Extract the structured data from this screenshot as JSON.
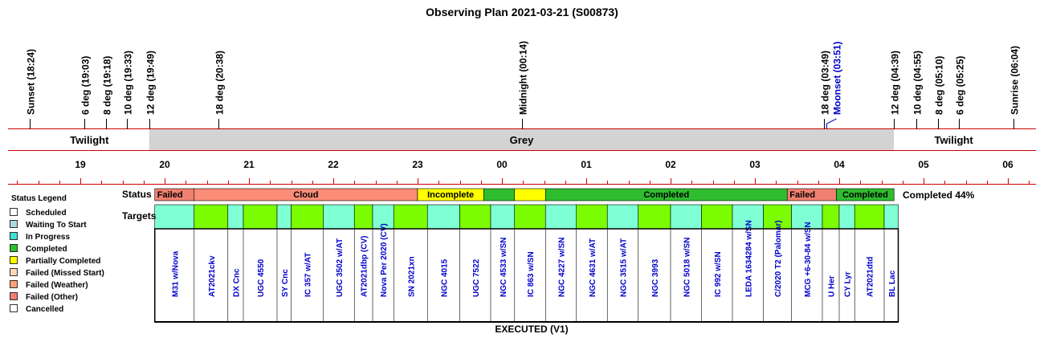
{
  "title": "Observing Plan 2021-03-21 (S00873)",
  "events": [
    {
      "label": "Sunset (18:24)",
      "time": "18:24"
    },
    {
      "label": "6 deg (19:03)",
      "time": "19:03"
    },
    {
      "label": "8 deg (19:18)",
      "time": "19:18"
    },
    {
      "label": "10 deg (19:33)",
      "time": "19:33"
    },
    {
      "label": "12 deg (19:49)",
      "time": "19:49"
    },
    {
      "label": "18 deg (20:38)",
      "time": "20:38"
    },
    {
      "label": "Midnight (00:14)",
      "time": "00:14"
    },
    {
      "label": "18 deg (03:49)",
      "time": "03:49"
    },
    {
      "label": "12 deg (04:39)",
      "time": "04:39"
    },
    {
      "label": "10 deg (04:55)",
      "time": "04:55"
    },
    {
      "label": "8 deg (05:10)",
      "time": "05:10"
    },
    {
      "label": "6 deg (05:25)",
      "time": "05:25"
    },
    {
      "label": "Sunrise (06:04)",
      "time": "06:04"
    }
  ],
  "moon_event": {
    "label": "Moonset (03:51)",
    "time": "03:51",
    "color": "#0000cc"
  },
  "bands": [
    {
      "label": "Twilight",
      "from": "18:24",
      "to": "19:49",
      "color": "#ffffff"
    },
    {
      "label": "Grey",
      "from": "19:49",
      "to": "04:39",
      "color": "#d3d3d3"
    },
    {
      "label": "Twilight",
      "from": "04:39",
      "to": "06:04",
      "color": "#ffffff"
    }
  ],
  "hour_labels": [
    "19",
    "20",
    "21",
    "22",
    "23",
    "00",
    "01",
    "02",
    "03",
    "04",
    "05",
    "06"
  ],
  "row_labels": {
    "status": "Status",
    "targets": "Targets"
  },
  "status_segments": [
    {
      "label": "Failed",
      "from": "19:53",
      "to": "20:21",
      "color": "#f08070"
    },
    {
      "label": "Cloud",
      "from": "20:21",
      "to": "23:00",
      "color": "#fa8c78"
    },
    {
      "label": "Incomplete",
      "from": "23:00",
      "to": "23:47",
      "color": "#ffff00"
    },
    {
      "label": "",
      "from": "23:47",
      "to": "00:09",
      "color": "#2ebd2e"
    },
    {
      "label": "",
      "from": "00:09",
      "to": "00:31",
      "color": "#ffff00"
    },
    {
      "label": "Completed",
      "from": "00:31",
      "to": "03:23",
      "color": "#2ebd2e"
    },
    {
      "label": "Failed",
      "from": "03:23",
      "to": "03:58",
      "color": "#f08070"
    },
    {
      "label": "Completed",
      "from": "03:58",
      "to": "04:39",
      "color": "#2ebd2e"
    }
  ],
  "targets": [
    {
      "name": "M31 w/Nova",
      "from": "19:53",
      "to": "20:21",
      "color": "#7fffd4"
    },
    {
      "name": "AT2021ckv",
      "from": "20:21",
      "to": "20:45",
      "color": "#7cfc00"
    },
    {
      "name": "DX Cnc",
      "from": "20:45",
      "to": "20:56",
      "color": "#7fffd4"
    },
    {
      "name": "UGC 4550",
      "from": "20:56",
      "to": "21:20",
      "color": "#7cfc00"
    },
    {
      "name": "SY Cnc",
      "from": "21:20",
      "to": "21:30",
      "color": "#7fffd4"
    },
    {
      "name": "IC 357 w/AT",
      "from": "21:30",
      "to": "21:53",
      "color": "#7cfc00"
    },
    {
      "name": "UGC 3502 w/AT",
      "from": "21:53",
      "to": "22:15",
      "color": "#7fffd4"
    },
    {
      "name": "AT2021dbp (CV)",
      "from": "22:15",
      "to": "22:28",
      "color": "#7cfc00"
    },
    {
      "name": "Nova Per 2020 (CV)",
      "from": "22:28",
      "to": "22:43",
      "color": "#7fffd4"
    },
    {
      "name": "SN 2021xn",
      "from": "22:43",
      "to": "23:07",
      "color": "#7cfc00"
    },
    {
      "name": "NGC 4015",
      "from": "23:07",
      "to": "23:30",
      "color": "#7fffd4"
    },
    {
      "name": "UGC 7522",
      "from": "23:30",
      "to": "23:52",
      "color": "#7cfc00"
    },
    {
      "name": "NGC 4533 w/SN",
      "from": "23:52",
      "to": "00:09",
      "color": "#7fffd4"
    },
    {
      "name": "IC 863 w/SN",
      "from": "00:09",
      "to": "00:31",
      "color": "#7cfc00"
    },
    {
      "name": "NGC 4227 w/SN",
      "from": "00:31",
      "to": "00:53",
      "color": "#7fffd4"
    },
    {
      "name": "NGC 4631 w/AT",
      "from": "00:53",
      "to": "01:15",
      "color": "#7cfc00"
    },
    {
      "name": "NGC 3515 w/AT",
      "from": "01:15",
      "to": "01:37",
      "color": "#7fffd4"
    },
    {
      "name": "NGC 3993",
      "from": "01:37",
      "to": "02:00",
      "color": "#7cfc00"
    },
    {
      "name": "NGC 5018 w/SN",
      "from": "02:00",
      "to": "02:22",
      "color": "#7fffd4"
    },
    {
      "name": "IC 992 w/SN",
      "from": "02:22",
      "to": "02:44",
      "color": "#7cfc00"
    },
    {
      "name": "LEDA 1634284 w/SN",
      "from": "02:44",
      "to": "03:06",
      "color": "#7fffd4"
    },
    {
      "name": "C/2020 T2 (Palomar)",
      "from": "03:06",
      "to": "03:26",
      "color": "#7cfc00"
    },
    {
      "name": "MCG +6-30-84 w/SN",
      "from": "03:26",
      "to": "03:48",
      "color": "#7fffd4"
    },
    {
      "name": "U Her",
      "from": "03:48",
      "to": "04:00",
      "color": "#7cfc00"
    },
    {
      "name": "CY Lyr",
      "from": "04:00",
      "to": "04:11",
      "color": "#7fffd4"
    },
    {
      "name": "AT2021dtd",
      "from": "04:11",
      "to": "04:32",
      "color": "#7cfc00"
    },
    {
      "name": "BL Lac",
      "from": "04:32",
      "to": "04:42",
      "color": "#7fffd4"
    }
  ],
  "completion": "Completed 44%",
  "footer": "EXECUTED (V1)",
  "legend": {
    "title": "Status Legend",
    "items": [
      {
        "label": "Scheduled",
        "color": "#ffffff"
      },
      {
        "label": "Waiting To Start",
        "color": "#add8e6"
      },
      {
        "label": "In Progress",
        "color": "#40e0d0"
      },
      {
        "label": "Completed",
        "color": "#2ebd2e"
      },
      {
        "label": "Partially Completed",
        "color": "#ffff00"
      },
      {
        "label": "Failed (Missed Start)",
        "color": "#ffdab9"
      },
      {
        "label": "Failed (Weather)",
        "color": "#ffa07a"
      },
      {
        "label": "Failed (Other)",
        "color": "#f08070"
      },
      {
        "label": "Cancelled",
        "color": "#ffffff"
      }
    ]
  },
  "colors": {
    "axis_line": "#cc0000",
    "target_text": "#0000cc",
    "text": "#000000"
  }
}
